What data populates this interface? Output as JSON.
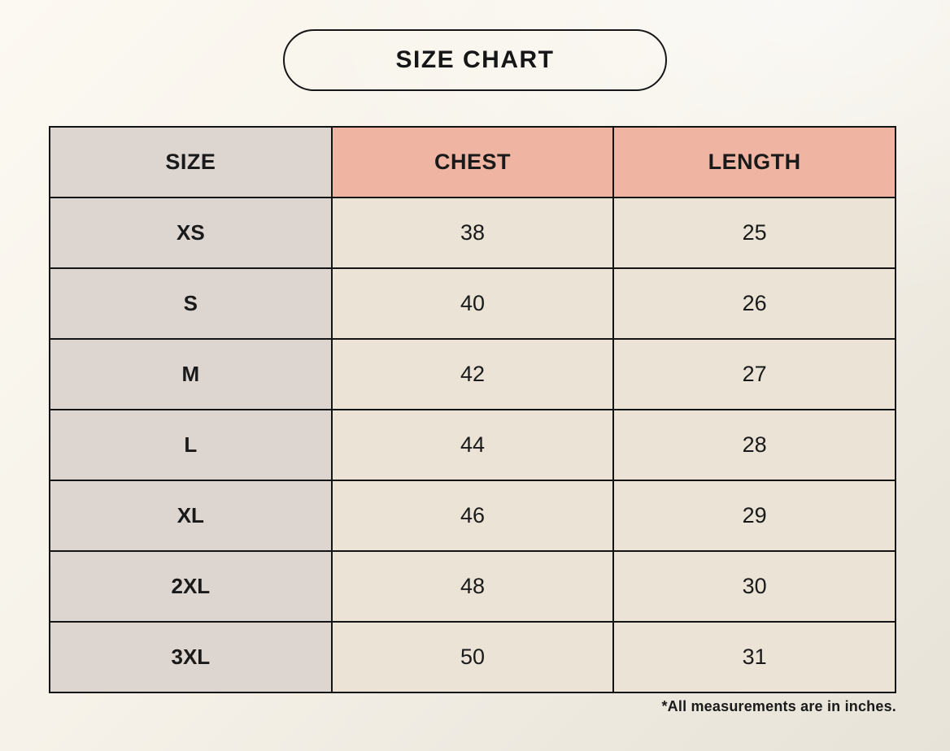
{
  "page": {
    "title": "SIZE CHART",
    "footnote": "*All measurements are in inches."
  },
  "colors": {
    "background_light": "#fcf9f2",
    "background_dark": "#e7e3d9",
    "size_column_bg": "#dcd5d0",
    "header_accent_bg": "#f0b4a2",
    "value_cell_bg": "#eae3d6",
    "border": "#141414",
    "text": "#1a1a1a"
  },
  "chart_data": {
    "type": "table",
    "title": "SIZE CHART",
    "columns": [
      "SIZE",
      "CHEST",
      "LENGTH"
    ],
    "rows": [
      [
        "XS",
        "38",
        "25"
      ],
      [
        "S",
        "40",
        "26"
      ],
      [
        "M",
        "42",
        "27"
      ],
      [
        "L",
        "44",
        "28"
      ],
      [
        "XL",
        "46",
        "29"
      ],
      [
        "2XL",
        "48",
        "30"
      ],
      [
        "3XL",
        "50",
        "31"
      ]
    ],
    "footnote": "*All measurements are in inches.",
    "units": "inches"
  }
}
